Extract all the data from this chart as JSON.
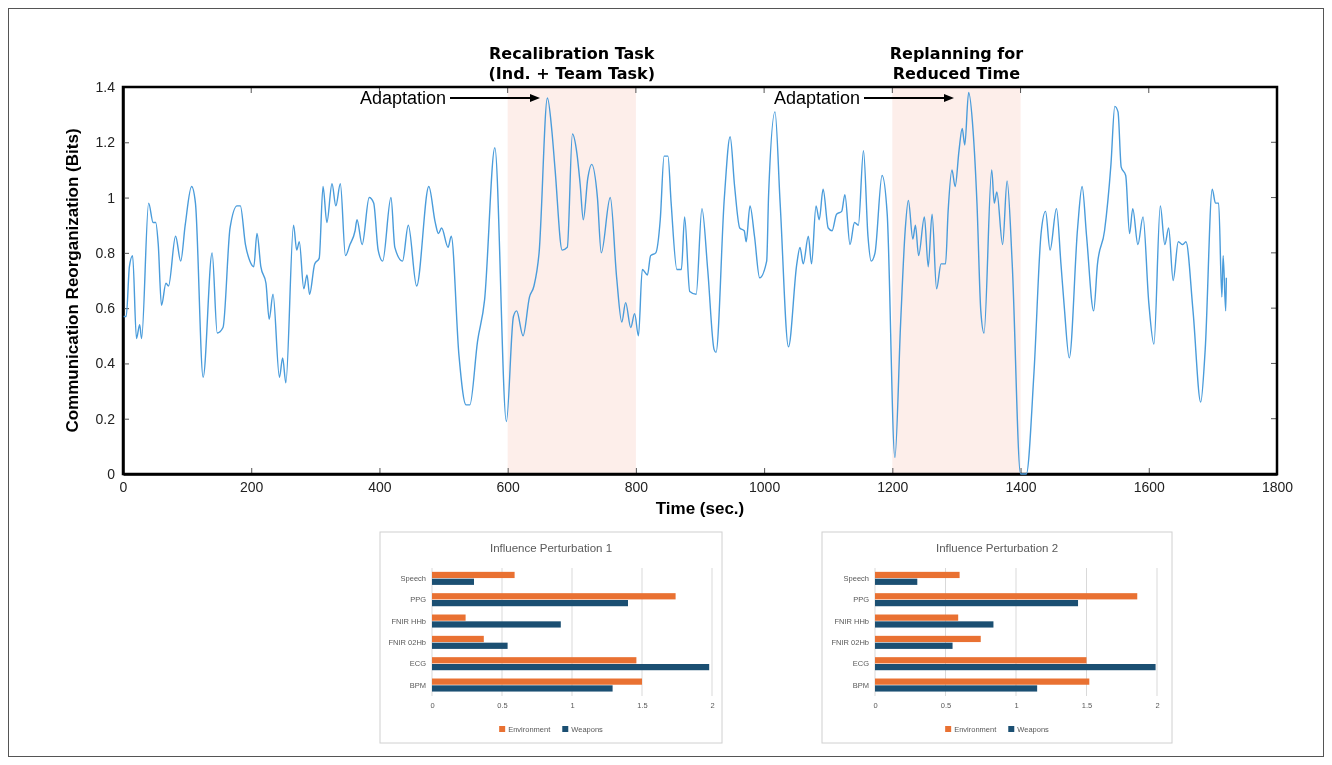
{
  "chart_data": [
    {
      "type": "line",
      "xlabel": "Time (sec.)",
      "ylabel": "Communication Reorganization (Bits)",
      "xlim": [
        0,
        1800
      ],
      "ylim": [
        0,
        1.4
      ],
      "xticks": [
        0,
        200,
        400,
        600,
        800,
        1000,
        1200,
        1400,
        1600,
        1800
      ],
      "yticks": [
        0,
        0.2,
        0.4,
        0.6,
        0.8,
        1,
        1.2,
        1.4
      ],
      "series": [
        {
          "color": "#4a9cdb",
          "x": [
            1,
            5,
            10,
            15,
            21,
            26,
            29,
            40,
            47,
            51,
            55,
            60,
            67,
            71,
            82,
            90,
            97,
            107,
            113,
            125,
            139,
            147,
            156,
            167,
            178,
            183,
            191,
            198,
            204,
            209,
            215,
            223,
            228,
            234,
            244,
            249,
            254,
            266,
            271,
            275,
            282,
            287,
            291,
            299,
            306,
            312,
            318,
            326,
            332,
            339,
            347,
            354,
            362,
            365,
            373,
            384,
            391,
            398,
            405,
            418,
            424,
            436,
            445,
            458,
            477,
            487,
            492,
            497,
            507,
            512,
            524,
            535,
            541,
            553,
            564,
            580,
            598,
            609,
            614,
            624,
            634,
            641,
            649,
            662,
            669,
            674,
            685,
            693,
            701,
            708,
            713,
            718,
            725,
            731,
            740,
            746,
            760,
            770,
            778,
            784,
            792,
            798,
            804,
            810,
            818,
            823,
            831,
            838,
            844,
            850,
            855,
            864,
            871,
            876,
            884,
            894,
            903,
            912,
            922,
            925,
            938,
            947,
            954,
            962,
            969,
            972,
            978,
            985,
            993,
            1004,
            1007,
            1017,
            1025,
            1038,
            1051,
            1056,
            1061,
            1069,
            1074,
            1081,
            1086,
            1092,
            1100,
            1106,
            1113,
            1121,
            1126,
            1134,
            1141,
            1147,
            1155,
            1162,
            1167,
            1173,
            1184,
            1192,
            1204,
            1213,
            1220,
            1225,
            1232,
            1236,
            1241,
            1250,
            1256,
            1262,
            1269,
            1276,
            1283,
            1287,
            1293,
            1298,
            1304,
            1309,
            1313,
            1319,
            1326,
            1332,
            1338,
            1343,
            1355,
            1359,
            1363,
            1372,
            1379,
            1387,
            1400,
            1409,
            1421,
            1432,
            1439,
            1446,
            1456,
            1463,
            1468,
            1476,
            1489,
            1496,
            1503,
            1514,
            1520,
            1531,
            1541,
            1547,
            1552,
            1557,
            1564,
            1570,
            1575,
            1583,
            1591,
            1600,
            1608,
            1618,
            1625,
            1631,
            1638,
            1646,
            1653,
            1658,
            1669,
            1681,
            1688,
            1699,
            1704,
            1709,
            1714,
            1716,
            1720,
            1721
          ],
          "values": [
            0.57,
            0.57,
            0.75,
            0.79,
            0.49,
            0.54,
            0.49,
            0.98,
            0.91,
            0.91,
            0.83,
            0.61,
            0.69,
            0.68,
            0.86,
            0.77,
            0.9,
            1.04,
            0.98,
            0.35,
            0.8,
            0.51,
            0.53,
            0.89,
            0.97,
            0.97,
            0.83,
            0.77,
            0.75,
            0.87,
            0.75,
            0.69,
            0.56,
            0.65,
            0.35,
            0.42,
            0.33,
            0.9,
            0.81,
            0.84,
            0.67,
            0.72,
            0.65,
            0.76,
            0.78,
            1.04,
            0.91,
            1.05,
            0.97,
            1.05,
            0.79,
            0.83,
            0.88,
            0.92,
            0.83,
            1,
            0.98,
            0.81,
            0.77,
            1,
            0.82,
            0.77,
            0.9,
            0.68,
            1.04,
            0.91,
            0.87,
            0.89,
            0.82,
            0.86,
            0.43,
            0.25,
            0.25,
            0.48,
            0.63,
            1.18,
            0.19,
            0.57,
            0.59,
            0.5,
            0.64,
            0.68,
            0.8,
            1.36,
            1.24,
            1.1,
            0.81,
            0.82,
            1.23,
            1.16,
            1.05,
            0.92,
            1.07,
            1.12,
            1,
            0.8,
            1,
            0.71,
            0.55,
            0.62,
            0.53,
            0.58,
            0.5,
            0.74,
            0.72,
            0.79,
            0.8,
            0.92,
            1.15,
            1.15,
            0.98,
            0.74,
            0.74,
            0.93,
            0.66,
            0.65,
            0.96,
            0.74,
            0.45,
            0.44,
            1,
            1.22,
            1.04,
            0.89,
            0.88,
            0.84,
            0.97,
            0.86,
            0.71,
            0.77,
            1.01,
            1.31,
            0.98,
            0.46,
            0.76,
            0.82,
            0.76,
            0.86,
            0.76,
            0.97,
            0.92,
            1.03,
            0.89,
            0.88,
            0.94,
            0.95,
            1.01,
            0.83,
            0.91,
            0.9,
            1.17,
            0.86,
            0.77,
            0.8,
            1.08,
            0.94,
            0.06,
            0.55,
            0.88,
            0.99,
            0.85,
            0.9,
            0.79,
            0.93,
            0.75,
            0.94,
            0.67,
            0.76,
            0.76,
            0.95,
            1.1,
            1.04,
            1.17,
            1.25,
            1.19,
            1.38,
            1.24,
            0.98,
            0.59,
            0.51,
            1.1,
            0.98,
            1.02,
            0.83,
            1.06,
            0.76,
            0,
            0,
            0.37,
            0.87,
            0.95,
            0.81,
            0.96,
            0.76,
            0.61,
            0.42,
            0.89,
            1.04,
            0.86,
            0.59,
            0.76,
            0.88,
            1.12,
            1.33,
            1.31,
            1.11,
            1.08,
            0.87,
            0.96,
            0.83,
            0.93,
            0.62,
            0.47,
            0.97,
            0.83,
            0.89,
            0.7,
            0.84,
            0.83,
            0.84,
            0.59,
            0.26,
            0.45,
            1.03,
            0.98,
            0.98,
            0.64,
            0.79,
            0.59,
            0.71
          ]
        }
      ],
      "bands": [
        {
          "axis": "x",
          "from": 600,
          "to": 800,
          "label": "Recalibration Task\n(Ind. + Team Task)",
          "color": "#fdeeea"
        },
        {
          "axis": "x",
          "from": 1200,
          "to": 1400,
          "label": "Replanning for\nReduced Time",
          "color": "#fdeeea"
        }
      ],
      "annotations": [
        "Adaptation",
        "Adaptation"
      ]
    },
    {
      "type": "bar",
      "orientation": "horizontal",
      "title": "Influence Perturbation 1",
      "categories": [
        "Speech",
        "PPG",
        "FNIR HHb",
        "FNIR 02Hb",
        "ECG",
        "BPM"
      ],
      "xlim": [
        0,
        2
      ],
      "xticks": [
        0,
        0.5,
        1,
        1.5,
        2
      ],
      "grid": "x",
      "legend": "bottom",
      "series": [
        {
          "name": "Environment",
          "color": "#e97132",
          "values": [
            0.59,
            1.74,
            0.24,
            0.37,
            1.46,
            1.5
          ]
        },
        {
          "name": "Weapons",
          "color": "#1b4f72",
          "values": [
            0.3,
            1.4,
            0.92,
            0.54,
            1.98,
            1.29
          ]
        }
      ]
    },
    {
      "type": "bar",
      "orientation": "horizontal",
      "title": "Influence Perturbation 2",
      "categories": [
        "Speech",
        "PPG",
        "FNIR HHb",
        "FNIR 02Hb",
        "ECG",
        "BPM"
      ],
      "xlim": [
        0,
        2
      ],
      "xticks": [
        0,
        0.5,
        1,
        1.5,
        2
      ],
      "grid": "x",
      "legend": "bottom",
      "series": [
        {
          "name": "Environment",
          "color": "#e97132",
          "values": [
            0.6,
            1.86,
            0.59,
            0.75,
            1.5,
            1.52
          ]
        },
        {
          "name": "Weapons",
          "color": "#1b4f72",
          "values": [
            0.3,
            1.44,
            0.84,
            0.55,
            1.99,
            1.15
          ]
        }
      ]
    }
  ]
}
